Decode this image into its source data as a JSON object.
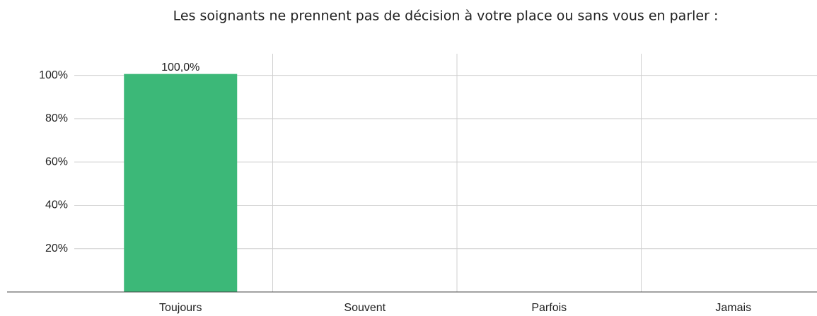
{
  "chart_data": {
    "type": "bar",
    "title": "Les soignants ne prennent pas de décision à votre place ou sans vous en parler :",
    "categories": [
      "Toujours",
      "Souvent",
      "Parfois",
      "Jamais"
    ],
    "values": [
      100,
      0,
      0,
      0
    ],
    "value_labels": [
      "100,0%",
      null,
      null,
      null
    ],
    "colors": [
      "#3cb878",
      "#f3e36b",
      "#f2c46a",
      "#d9675a"
    ],
    "ylim": [
      0,
      110
    ],
    "yticks": [
      {
        "value": 20,
        "label": "20%"
      },
      {
        "value": 40,
        "label": "40%"
      },
      {
        "value": 60,
        "label": "60%"
      },
      {
        "value": 80,
        "label": "80%"
      },
      {
        "value": 100,
        "label": "100%"
      }
    ],
    "grid": true
  }
}
